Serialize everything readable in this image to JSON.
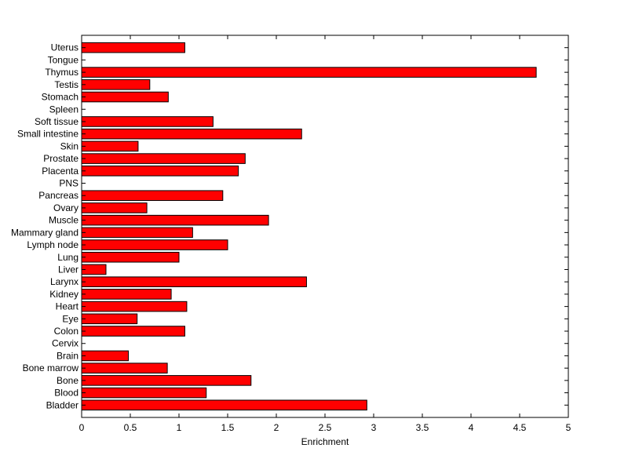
{
  "chart_data": {
    "type": "bar",
    "orientation": "horizontal",
    "categories": [
      "Bladder",
      "Blood",
      "Bone",
      "Bone marrow",
      "Brain",
      "Cervix",
      "Colon",
      "Eye",
      "Heart",
      "Kidney",
      "Larynx",
      "Liver",
      "Lung",
      "Lymph node",
      "Mammary gland",
      "Muscle",
      "Ovary",
      "Pancreas",
      "PNS",
      "Placenta",
      "Prostate",
      "Skin",
      "Small intestine",
      "Soft tissue",
      "Spleen",
      "Stomach",
      "Testis",
      "Thymus",
      "Tongue",
      "Uterus"
    ],
    "values": [
      2.93,
      1.28,
      1.74,
      0.88,
      0.48,
      0,
      1.06,
      0.57,
      1.08,
      0.92,
      2.31,
      0.25,
      1.0,
      1.5,
      1.14,
      1.92,
      0.67,
      1.45,
      0,
      1.61,
      1.68,
      0.58,
      2.26,
      1.35,
      0,
      0.89,
      0.7,
      4.67,
      0,
      1.06
    ],
    "xlim": [
      0,
      5
    ],
    "xticks": [
      "0",
      "0.5",
      "1",
      "1.5",
      "2",
      "2.5",
      "3",
      "3.5",
      "4",
      "4.5",
      "5"
    ],
    "xlabel": "Enrichment",
    "ylabel": "",
    "title": "",
    "bar_color": "#ff0000",
    "grid": false
  }
}
